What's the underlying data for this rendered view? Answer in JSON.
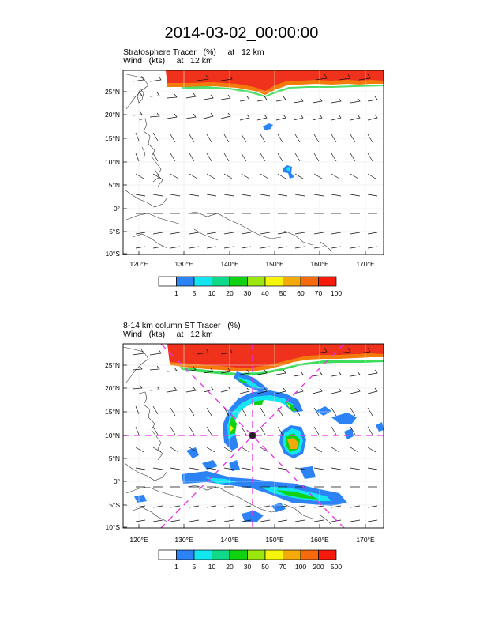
{
  "title": "2014-03-02_00:00:00",
  "panels": [
    {
      "id": "top",
      "caption_line1": "Stratosphere Tracer   (%)     at   12 km",
      "caption_line2": "Wind   (kts)     at   12 km",
      "lat_labels": [
        "25°N",
        "20°N",
        "15°N",
        "10°N",
        "5°N",
        "0°",
        "5°S",
        "10°S"
      ],
      "lon_labels": [
        "120°E",
        "130°E",
        "140°E",
        "150°E",
        "160°E",
        "170°E"
      ],
      "colorbar_labels": [
        "1",
        "5",
        "10",
        "20",
        "30",
        "40",
        "50",
        "60",
        "70",
        "100"
      ],
      "colorbar_colors": [
        "#ffffff",
        "#2b83f6",
        "#14e6f0",
        "#10d98a",
        "#11d211",
        "#9be60f",
        "#f5f50c",
        "#f5aa0c",
        "#f56a0c",
        "#f51a0c"
      ]
    },
    {
      "id": "bottom",
      "caption_line1": "8-14 km column ST Tracer   (%)",
      "caption_line2": "Wind   (kts)     at   12 km",
      "lat_labels": [
        "25°N",
        "20°N",
        "15°N",
        "10°N",
        "5°N",
        "0°",
        "5°S",
        "10°S"
      ],
      "lon_labels": [
        "120°E",
        "130°E",
        "140°E",
        "150°E",
        "160°E",
        "170°E"
      ],
      "colorbar_labels": [
        "1",
        "5",
        "10",
        "20",
        "30",
        "50",
        "70",
        "100",
        "200",
        "500"
      ],
      "colorbar_colors": [
        "#ffffff",
        "#2b83f6",
        "#14e6f0",
        "#10d98a",
        "#11d211",
        "#9be60f",
        "#f5f50c",
        "#f5aa0c",
        "#f56a0c",
        "#f51a0c"
      ]
    }
  ]
}
